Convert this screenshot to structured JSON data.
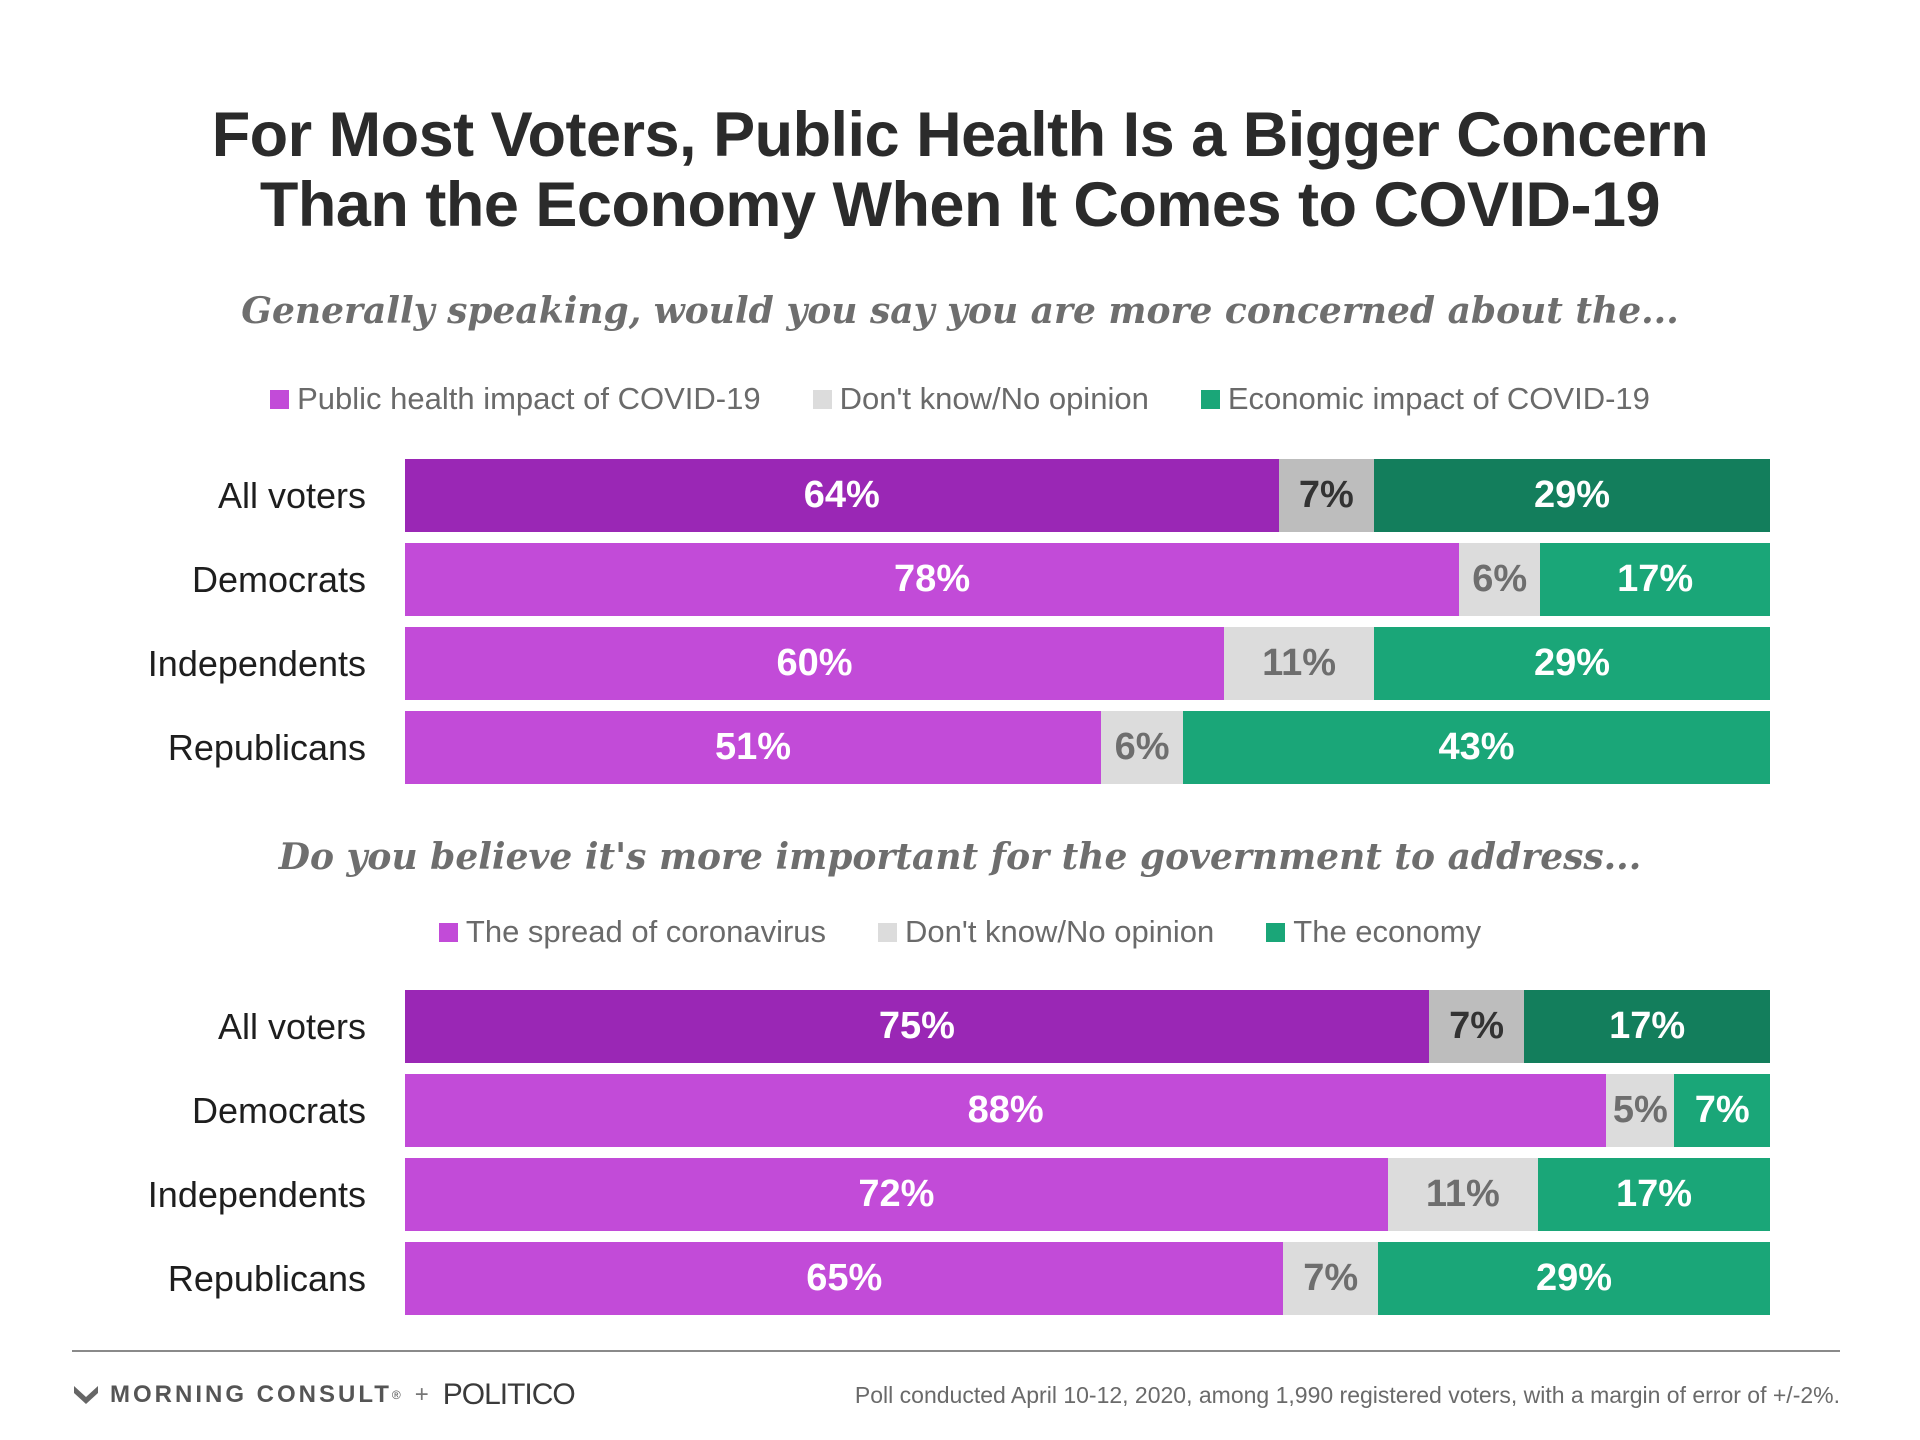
{
  "title": {
    "line1": "For Most Voters, Public Health Is a Bigger Concern",
    "line2": "Than the Economy When It Comes to COVID-19"
  },
  "colors": {
    "purple": "#c24bd8",
    "purple_dark": "#9a27b5",
    "gray": "#dcdcdc",
    "gray_dark": "#bdbdbd",
    "green": "#1aa678",
    "green_dark": "#137e5c"
  },
  "chart_data": [
    {
      "type": "bar",
      "orientation": "horizontal",
      "stacked": true,
      "title": "Generally speaking, would you say you are more concerned about the...",
      "categories": [
        "All voters",
        "Democrats",
        "Independents",
        "Republicans"
      ],
      "series": [
        {
          "name": "Public health impact of COVID-19",
          "values": [
            64,
            78,
            60,
            51
          ]
        },
        {
          "name": "Don't know/No opinion",
          "values": [
            7,
            6,
            11,
            6
          ]
        },
        {
          "name": "Economic impact of COVID-19",
          "values": [
            29,
            17,
            29,
            43
          ]
        }
      ],
      "labels": [
        [
          "64%",
          "7%",
          "29%"
        ],
        [
          "78%",
          "6%",
          "17%"
        ],
        [
          "60%",
          "11%",
          "29%"
        ],
        [
          "51%",
          "6%",
          "43%"
        ]
      ],
      "xlim": [
        0,
        100
      ],
      "legend": "top"
    },
    {
      "type": "bar",
      "orientation": "horizontal",
      "stacked": true,
      "title": "Do you believe it's more important for the government to address...",
      "categories": [
        "All voters",
        "Democrats",
        "Independents",
        "Republicans"
      ],
      "series": [
        {
          "name": "The spread of coronavirus",
          "values": [
            75,
            88,
            72,
            65
          ]
        },
        {
          "name": "Don't know/No opinion",
          "values": [
            7,
            5,
            11,
            7
          ]
        },
        {
          "name": "The economy",
          "values": [
            17,
            7,
            17,
            29
          ]
        }
      ],
      "labels": [
        [
          "75%",
          "7%",
          "17%"
        ],
        [
          "88%",
          "5%",
          "7%"
        ],
        [
          "72%",
          "11%",
          "17%"
        ],
        [
          "65%",
          "7%",
          "29%"
        ]
      ],
      "xlim": [
        0,
        100
      ],
      "legend": "top"
    }
  ],
  "footer": {
    "logo_text": "MORNING CONSULT",
    "logo_mark": "®",
    "plus": "+",
    "partner": "POLITICO",
    "note": "Poll conducted April 10-12, 2020, among 1,990 registered voters, with a margin of error of +/-2%."
  }
}
